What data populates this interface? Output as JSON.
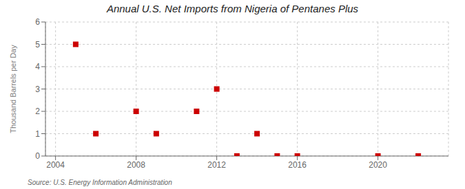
{
  "chart_data": {
    "type": "scatter",
    "title": "Annual U.S. Net Imports from Nigeria of Pentanes Plus",
    "ylabel": "Thousand Barrels per Day",
    "annotations": [
      "Source: U.S. Energy Information Administration"
    ],
    "x": [
      2005,
      2006,
      2008,
      2009,
      2011,
      2012,
      2013,
      2014,
      2015,
      2016,
      2020,
      2022
    ],
    "values": [
      5,
      1,
      2,
      1,
      2,
      3,
      0,
      1,
      0,
      0,
      0,
      0
    ],
    "xlim": [
      2003.5,
      2023.5
    ],
    "ylim": [
      0,
      6
    ],
    "xticks": [
      2004,
      2008,
      2012,
      2016,
      2020
    ],
    "yticks": [
      0,
      1,
      2,
      3,
      4,
      5,
      6
    ],
    "grid": true,
    "color": "#cc0000",
    "marker": "square"
  }
}
